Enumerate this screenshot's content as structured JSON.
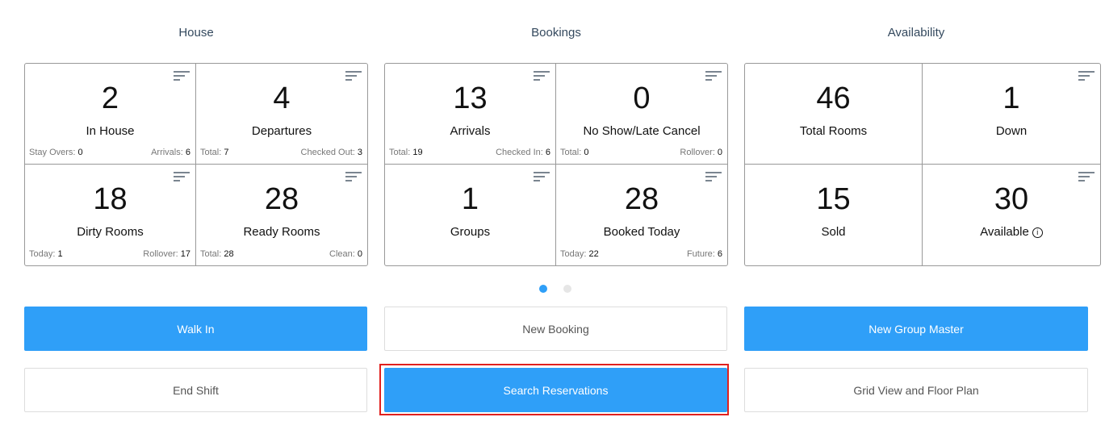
{
  "sections": [
    {
      "title": "House",
      "cells": [
        {
          "value": "2",
          "label": "In House",
          "sort": true,
          "left_label": "Stay Overs:",
          "left_value": "0",
          "right_label": "Arrivals:",
          "right_value": "6"
        },
        {
          "value": "4",
          "label": "Departures",
          "sort": true,
          "left_label": "Total:",
          "left_value": "7",
          "right_label": "Checked Out:",
          "right_value": "3"
        },
        {
          "value": "18",
          "label": "Dirty Rooms",
          "sort": true,
          "left_label": "Today:",
          "left_value": "1",
          "right_label": "Rollover:",
          "right_value": "17"
        },
        {
          "value": "28",
          "label": "Ready Rooms",
          "sort": true,
          "left_label": "Total:",
          "left_value": "28",
          "right_label": "Clean:",
          "right_value": "0"
        }
      ]
    },
    {
      "title": "Bookings",
      "cells": [
        {
          "value": "13",
          "label": "Arrivals",
          "sort": true,
          "left_label": "Total:",
          "left_value": "19",
          "right_label": "Checked In:",
          "right_value": "6"
        },
        {
          "value": "0",
          "label": "No Show/Late Cancel",
          "sort": true,
          "left_label": "Total:",
          "left_value": "0",
          "right_label": "Rollover:",
          "right_value": "0"
        },
        {
          "value": "1",
          "label": "Groups",
          "sort": true
        },
        {
          "value": "28",
          "label": "Booked Today",
          "sort": true,
          "left_label": "Today:",
          "left_value": "22",
          "right_label": "Future:",
          "right_value": "6"
        }
      ]
    },
    {
      "title": "Availability",
      "cells": [
        {
          "value": "46",
          "label": "Total Rooms",
          "sort": false
        },
        {
          "value": "1",
          "label": "Down",
          "sort": true
        },
        {
          "value": "15",
          "label": "Sold",
          "sort": false
        },
        {
          "value": "30",
          "label": "Available",
          "sort": true,
          "info": true
        }
      ]
    }
  ],
  "carousel": {
    "pages": 2,
    "active": 0
  },
  "buttons": [
    {
      "label": "Walk In",
      "style": "primary"
    },
    {
      "label": "New Booking",
      "style": "secondary"
    },
    {
      "label": "New Group Master",
      "style": "primary"
    },
    {
      "label": "End Shift",
      "style": "secondary"
    },
    {
      "label": "Search Reservations",
      "style": "primary",
      "highlighted": true
    },
    {
      "label": "Grid View and Floor Plan",
      "style": "secondary"
    }
  ],
  "colors": {
    "primary": "#2f9ff8",
    "highlight": "#e0201e",
    "border": "#999999"
  }
}
